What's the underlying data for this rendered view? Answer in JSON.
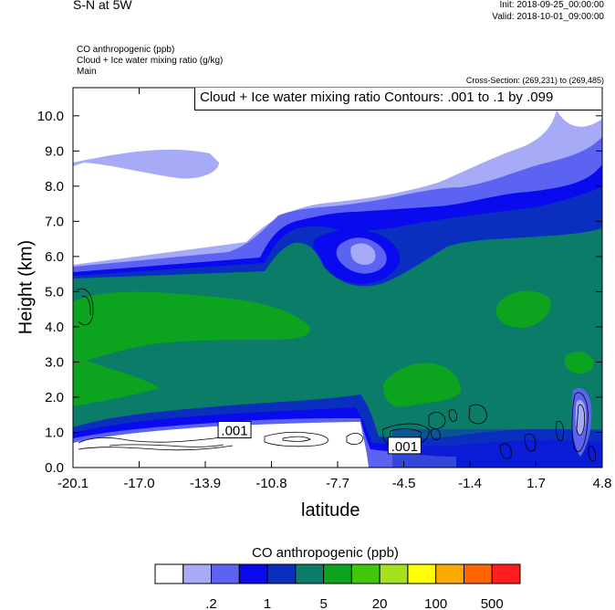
{
  "header": {
    "title": "S-N at 5W",
    "init": "Init: 2018-09-25_00:00:00",
    "valid": "Valid: 2018-10-01_09:00:00",
    "fields": [
      "CO anthropogenic   (ppb)",
      "Cloud + Ice water mixing ratio   (g/kg)",
      "Main"
    ],
    "cross_section": "Cross-Section: (269,231) to (269,485)"
  },
  "chart_data": {
    "type": "heatmap",
    "title": "Cloud + Ice water mixing ratio Contours: .001 to .1 by .099",
    "xlabel": "latitude",
    "ylabel": "Height (km)",
    "x_ticks": [
      "-20.1",
      "-17.0",
      "-13.9",
      "-10.8",
      "-7.7",
      "-4.5",
      "-1.4",
      "1.7",
      "4.8"
    ],
    "xlim": [
      -20.1,
      4.8
    ],
    "y_ticks": [
      "0.0",
      "1.0",
      "2.0",
      "3.0",
      "4.0",
      "5.0",
      "6.0",
      "7.0",
      "8.0",
      "9.0",
      "10.0"
    ],
    "ylim": [
      0,
      10.8
    ],
    "contour_labels": [
      {
        "text": ".001",
        "lat": -12.5,
        "km": 1.05
      },
      {
        "text": ".001",
        "lat": -4.5,
        "km": 0.6
      }
    ],
    "colorbar": {
      "title": "CO anthropogenic  (ppb)",
      "colors": [
        "#ffffff",
        "#a6aaf7",
        "#5c62f2",
        "#0a0aee",
        "#0a2ebd",
        "#0b7c68",
        "#0ca41e",
        "#42c60a",
        "#a6e01e",
        "#ffff00",
        "#ffaa00",
        "#ff6400",
        "#ff1e1e"
      ],
      "labels": [
        {
          "text": ".2",
          "boundary": 2
        },
        {
          "text": "1",
          "boundary": 4
        },
        {
          "text": "5",
          "boundary": 6
        },
        {
          "text": "20",
          "boundary": 8
        },
        {
          "text": "100",
          "boundary": 10
        },
        {
          "text": "500",
          "boundary": 12
        }
      ]
    }
  }
}
